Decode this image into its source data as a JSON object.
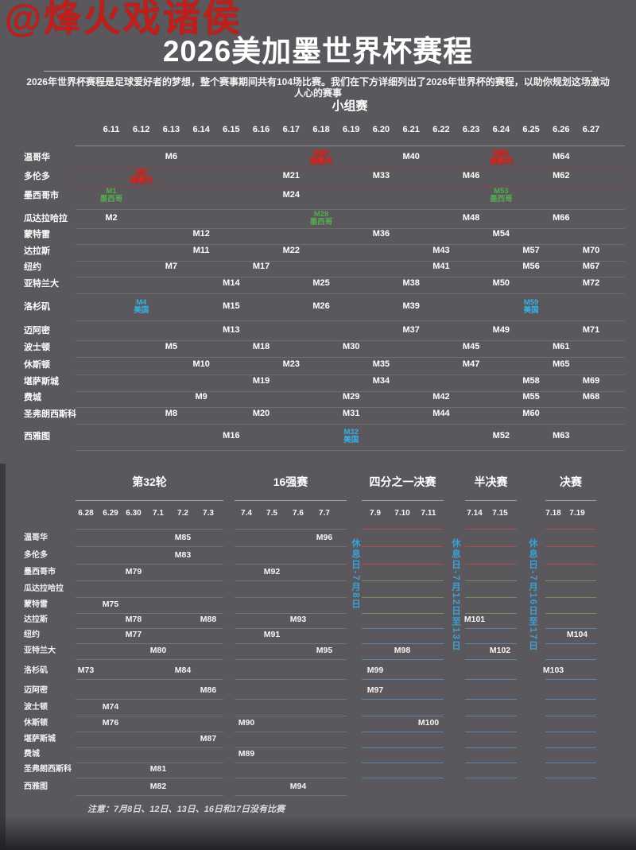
{
  "watermark": "@烽火戏诸侯",
  "title": "2026美加墨世界杯赛程",
  "subtitle": "2026年世界杯赛程是足球爱好者的梦想，整个赛事期间共有104场比赛。我们在下方详细列出了2026年世界杯的赛程，以助你规划这场激动人心的赛事",
  "note": "注意：7月8日、12日、13日、16日和17日没有比赛",
  "colors": {
    "background": "#5a585c",
    "text": "#ffffff",
    "canada": "#ce2b26",
    "mexico": "#54aa4f",
    "usa": "#35b2e5",
    "rest_day": "#3aa0d8",
    "watermark": "#bf1f1b"
  },
  "chart_data": [
    {
      "type": "table",
      "title": "小组赛",
      "x_labels": [
        "6.11",
        "6.12",
        "6.13",
        "6.14",
        "6.15",
        "6.16",
        "6.17",
        "6.18",
        "6.19",
        "6.20",
        "6.21",
        "6.22",
        "6.23",
        "6.24",
        "6.25",
        "6.26",
        "6.27"
      ],
      "rows": [
        {
          "city": "温哥华",
          "country": "canada",
          "cells": [
            {
              "date": "6.13",
              "m": "M6"
            },
            {
              "date": "6.18",
              "m": "M27",
              "sub": "加拿大",
              "hl": "canada"
            },
            {
              "date": "6.21",
              "m": "M40"
            },
            {
              "date": "6.24",
              "m": "M51",
              "sub": "加拿大",
              "hl": "canada"
            },
            {
              "date": "6.26",
              "m": "M64"
            }
          ]
        },
        {
          "city": "多伦多",
          "country": "canada",
          "cells": [
            {
              "date": "6.12",
              "m": "M3",
              "sub": "加拿大",
              "hl": "canada"
            },
            {
              "date": "6.17",
              "m": "M21"
            },
            {
              "date": "6.20",
              "m": "M33"
            },
            {
              "date": "6.23",
              "m": "M46"
            },
            {
              "date": "6.26",
              "m": "M62"
            }
          ]
        },
        {
          "city": "墨西哥市",
          "country": "mexico",
          "cells": [
            {
              "date": "6.11",
              "m": "M1",
              "sub": "墨西哥",
              "hl": "mexico"
            },
            {
              "date": "6.17",
              "m": "M24"
            },
            {
              "date": "6.24",
              "m": "M53",
              "sub": "墨西哥",
              "hl": "mexico"
            }
          ]
        },
        {
          "city": "瓜达拉哈拉",
          "country": "mexico",
          "cells": [
            {
              "date": "6.11",
              "m": "M2"
            },
            {
              "date": "6.18",
              "m": "M28",
              "sub": "墨西哥",
              "hl": "mexico"
            },
            {
              "date": "6.23",
              "m": "M48"
            },
            {
              "date": "6.26",
              "m": "M66"
            }
          ]
        },
        {
          "city": "蒙特雷",
          "country": "mexico",
          "cells": [
            {
              "date": "6.14",
              "m": "M12"
            },
            {
              "date": "6.20",
              "m": "M36"
            },
            {
              "date": "6.24",
              "m": "M54"
            }
          ]
        },
        {
          "city": "达拉斯",
          "country": "usa",
          "cells": [
            {
              "date": "6.14",
              "m": "M11"
            },
            {
              "date": "6.17",
              "m": "M22"
            },
            {
              "date": "6.22",
              "m": "M43"
            },
            {
              "date": "6.25",
              "m": "M57"
            },
            {
              "date": "6.27",
              "m": "M70"
            }
          ]
        },
        {
          "city": "纽约",
          "country": "usa",
          "cells": [
            {
              "date": "6.13",
              "m": "M7"
            },
            {
              "date": "6.16",
              "m": "M17"
            },
            {
              "date": "6.22",
              "m": "M41"
            },
            {
              "date": "6.25",
              "m": "M56"
            },
            {
              "date": "6.27",
              "m": "M67"
            }
          ]
        },
        {
          "city": "亚特兰大",
          "country": "usa",
          "cells": [
            {
              "date": "6.15",
              "m": "M14"
            },
            {
              "date": "6.18",
              "m": "M25"
            },
            {
              "date": "6.21",
              "m": "M38"
            },
            {
              "date": "6.24",
              "m": "M50"
            },
            {
              "date": "6.27",
              "m": "M72"
            }
          ]
        },
        {
          "city": "洛杉矶",
          "country": "usa",
          "cells": [
            {
              "date": "6.12",
              "m": "M4",
              "sub": "美国",
              "hl": "usa"
            },
            {
              "date": "6.15",
              "m": "M15"
            },
            {
              "date": "6.18",
              "m": "M26"
            },
            {
              "date": "6.21",
              "m": "M39"
            },
            {
              "date": "6.25",
              "m": "M59",
              "sub": "美国",
              "hl": "usa"
            }
          ]
        },
        {
          "city": "迈阿密",
          "country": "usa",
          "cells": [
            {
              "date": "6.15",
              "m": "M13"
            },
            {
              "date": "6.21",
              "m": "M37"
            },
            {
              "date": "6.24",
              "m": "M49"
            },
            {
              "date": "6.27",
              "m": "M71"
            }
          ]
        },
        {
          "city": "波士顿",
          "country": "usa",
          "cells": [
            {
              "date": "6.13",
              "m": "M5"
            },
            {
              "date": "6.16",
              "m": "M18"
            },
            {
              "date": "6.19",
              "m": "M30"
            },
            {
              "date": "6.23",
              "m": "M45"
            },
            {
              "date": "6.26",
              "m": "M61"
            }
          ]
        },
        {
          "city": "休斯顿",
          "country": "usa",
          "cells": [
            {
              "date": "6.14",
              "m": "M10"
            },
            {
              "date": "6.17",
              "m": "M23"
            },
            {
              "date": "6.20",
              "m": "M35"
            },
            {
              "date": "6.23",
              "m": "M47"
            },
            {
              "date": "6.26",
              "m": "M65"
            }
          ]
        },
        {
          "city": "堪萨斯城",
          "country": "usa",
          "cells": [
            {
              "date": "6.16",
              "m": "M19"
            },
            {
              "date": "6.20",
              "m": "M34"
            },
            {
              "date": "6.25",
              "m": "M58"
            },
            {
              "date": "6.27",
              "m": "M69"
            }
          ]
        },
        {
          "city": "费城",
          "country": "usa",
          "cells": [
            {
              "date": "6.14",
              "m": "M9"
            },
            {
              "date": "6.19",
              "m": "M29"
            },
            {
              "date": "6.22",
              "m": "M42"
            },
            {
              "date": "6.25",
              "m": "M55"
            },
            {
              "date": "6.27",
              "m": "M68"
            }
          ]
        },
        {
          "city": "圣弗朗西斯科",
          "country": "usa",
          "cells": [
            {
              "date": "6.13",
              "m": "M8"
            },
            {
              "date": "6.16",
              "m": "M20"
            },
            {
              "date": "6.19",
              "m": "M31"
            },
            {
              "date": "6.22",
              "m": "M44"
            },
            {
              "date": "6.25",
              "m": "M60"
            }
          ]
        },
        {
          "city": "西雅图",
          "country": "usa",
          "cells": [
            {
              "date": "6.15",
              "m": "M16"
            },
            {
              "date": "6.19",
              "m": "M32",
              "sub": "美国",
              "hl": "usa"
            },
            {
              "date": "6.24",
              "m": "M52"
            },
            {
              "date": "6.26",
              "m": "M63"
            }
          ]
        }
      ]
    },
    {
      "type": "table",
      "title": "淘汰赛",
      "stages": [
        {
          "label": "第32轮",
          "dates": [
            "6.28",
            "6.29",
            "6.30",
            "7.1",
            "7.2",
            "7.3"
          ]
        },
        {
          "label": "16强赛",
          "dates": [
            "7.4",
            "7.5",
            "7.6",
            "7.7"
          ]
        },
        {
          "label": "四分之一决赛",
          "dates": [
            "7.9",
            "7.10",
            "7.11"
          ]
        },
        {
          "label": "半决赛",
          "dates": [
            "7.14",
            "7.15"
          ]
        },
        {
          "label": "决赛",
          "dates": [
            "7.18",
            "7.19"
          ]
        }
      ],
      "rest_days": [
        "休息日-7月8日",
        "休息日-7月12日至13日",
        "休息日-7月16日至17日"
      ],
      "rows": [
        {
          "city": "温哥华",
          "country": "canada",
          "cells": [
            {
              "date": "7.2",
              "m": "M85"
            },
            {
              "date": "7.7",
              "m": "M96"
            }
          ]
        },
        {
          "city": "多伦多",
          "country": "canada",
          "cells": [
            {
              "date": "7.2",
              "m": "M83"
            }
          ]
        },
        {
          "city": "墨西哥市",
          "country": "mexico",
          "cells": [
            {
              "date": "6.30",
              "m": "M79"
            },
            {
              "date": "7.5",
              "m": "M92"
            }
          ]
        },
        {
          "city": "瓜达拉哈拉",
          "country": "mexico",
          "cells": []
        },
        {
          "city": "蒙特雷",
          "country": "mexico",
          "cells": [
            {
              "date": "6.29",
              "m": "M75"
            }
          ]
        },
        {
          "city": "达拉斯",
          "country": "usa",
          "cells": [
            {
              "date": "6.30",
              "m": "M78"
            },
            {
              "date": "7.3",
              "m": "M88"
            },
            {
              "date": "7.6",
              "m": "M93"
            },
            {
              "date": "7.14",
              "m": "M101"
            }
          ]
        },
        {
          "city": "纽约",
          "country": "usa",
          "cells": [
            {
              "date": "6.30",
              "m": "M77"
            },
            {
              "date": "7.5",
              "m": "M91"
            },
            {
              "date": "7.19",
              "m": "M104"
            }
          ]
        },
        {
          "city": "亚特兰大",
          "country": "usa",
          "cells": [
            {
              "date": "7.1",
              "m": "M80"
            },
            {
              "date": "7.7",
              "m": "M95"
            },
            {
              "date": "7.10",
              "m": "M98"
            },
            {
              "date": "7.15",
              "m": "M102"
            }
          ]
        },
        {
          "city": "洛杉矶",
          "country": "usa",
          "cells": [
            {
              "date": "6.28",
              "m": "M73"
            },
            {
              "date": "7.2",
              "m": "M84"
            },
            {
              "date": "7.9",
              "m": "M99"
            },
            {
              "date": "7.18",
              "m": "M103"
            }
          ]
        },
        {
          "city": "迈阿密",
          "country": "usa",
          "cells": [
            {
              "date": "7.3",
              "m": "M86"
            },
            {
              "date": "7.9",
              "m": "M97"
            }
          ]
        },
        {
          "city": "波士顿",
          "country": "usa",
          "cells": [
            {
              "date": "6.29",
              "m": "M74"
            }
          ]
        },
        {
          "city": "休斯顿",
          "country": "usa",
          "cells": [
            {
              "date": "6.29",
              "m": "M76"
            },
            {
              "date": "7.4",
              "m": "M90"
            },
            {
              "date": "7.11",
              "m": "M100"
            }
          ]
        },
        {
          "city": "堪萨斯城",
          "country": "usa",
          "cells": [
            {
              "date": "7.3",
              "m": "M87"
            }
          ]
        },
        {
          "city": "费城",
          "country": "usa",
          "cells": [
            {
              "date": "7.4",
              "m": "M89"
            }
          ]
        },
        {
          "city": "圣弗朗西斯科",
          "country": "usa",
          "cells": [
            {
              "date": "7.1",
              "m": "M81"
            }
          ]
        },
        {
          "city": "西雅图",
          "country": "usa",
          "cells": [
            {
              "date": "7.1",
              "m": "M82"
            },
            {
              "date": "7.6",
              "m": "M94"
            }
          ]
        }
      ]
    }
  ]
}
